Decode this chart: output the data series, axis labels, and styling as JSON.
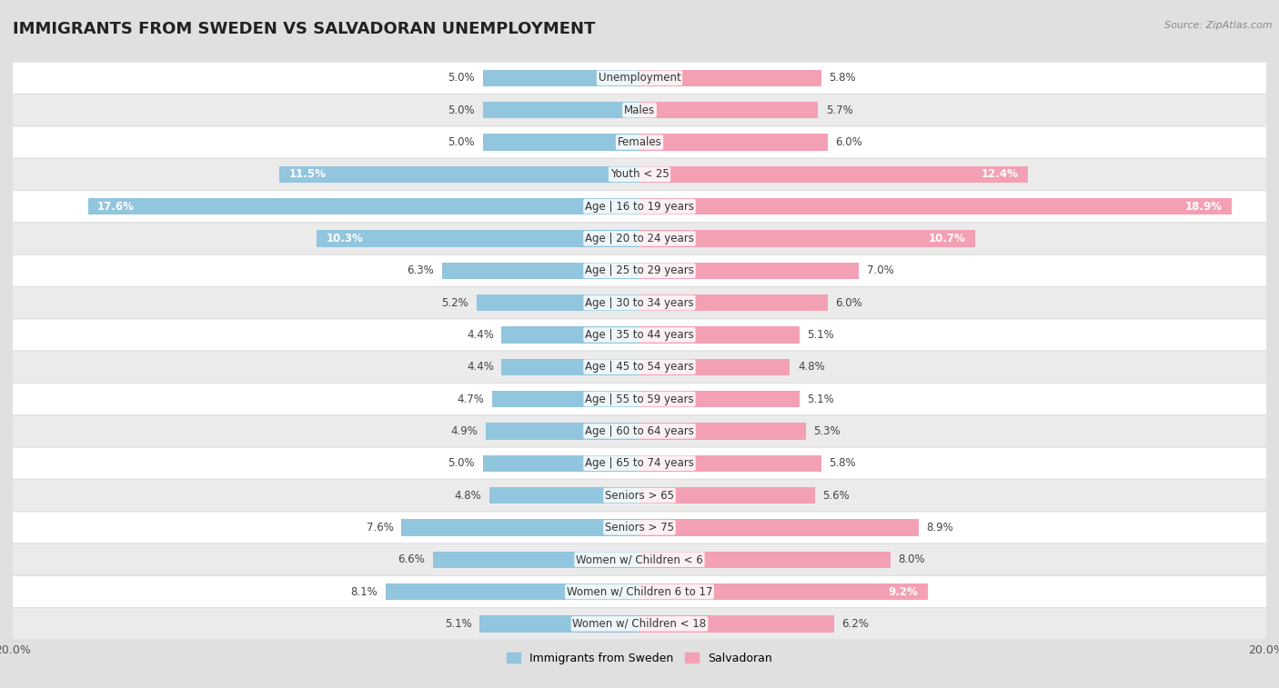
{
  "title": "IMMIGRANTS FROM SWEDEN VS SALVADORAN UNEMPLOYMENT",
  "source": "Source: ZipAtlas.com",
  "categories": [
    "Unemployment",
    "Males",
    "Females",
    "Youth < 25",
    "Age | 16 to 19 years",
    "Age | 20 to 24 years",
    "Age | 25 to 29 years",
    "Age | 30 to 34 years",
    "Age | 35 to 44 years",
    "Age | 45 to 54 years",
    "Age | 55 to 59 years",
    "Age | 60 to 64 years",
    "Age | 65 to 74 years",
    "Seniors > 65",
    "Seniors > 75",
    "Women w/ Children < 6",
    "Women w/ Children 6 to 17",
    "Women w/ Children < 18"
  ],
  "sweden_values": [
    5.0,
    5.0,
    5.0,
    11.5,
    17.6,
    10.3,
    6.3,
    5.2,
    4.4,
    4.4,
    4.7,
    4.9,
    5.0,
    4.8,
    7.6,
    6.6,
    8.1,
    5.1
  ],
  "salvadoran_values": [
    5.8,
    5.7,
    6.0,
    12.4,
    18.9,
    10.7,
    7.0,
    6.0,
    5.1,
    4.8,
    5.1,
    5.3,
    5.8,
    5.6,
    8.9,
    8.0,
    9.2,
    6.2
  ],
  "sweden_color": "#92c5de",
  "salvadoran_color": "#f4a0b4",
  "sweden_label": "Immigrants from Sweden",
  "salvadoran_label": "Salvadoran",
  "xlim": 20.0,
  "bar_height": 0.52,
  "row_bg_light": "#f7f7f7",
  "row_bg_dark": "#e8e8e8",
  "title_fontsize": 13,
  "cat_fontsize": 8.5,
  "value_fontsize": 8.5,
  "source_fontsize": 8
}
